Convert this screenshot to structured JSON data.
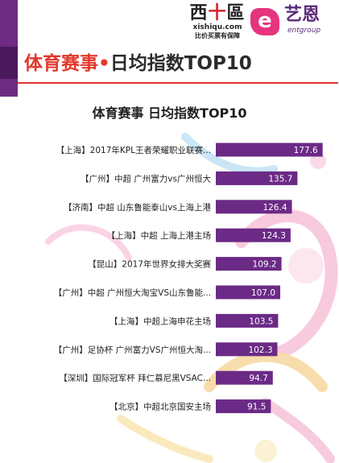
{
  "header": {
    "logo_xishiqu": {
      "brand_left": "西",
      "brand_plus": "十",
      "brand_right": "區",
      "domain": "xishiqu.com",
      "slogan": "比价买票有保障"
    },
    "logo_entgroup": {
      "badge": "e",
      "cn": "艺恩",
      "en": "entgroup"
    },
    "title_part1": "体育赛事",
    "title_dot": "•",
    "title_part2": "日均指数TOP10"
  },
  "colors": {
    "bar": "#6b2a86",
    "accent": "#e2382d",
    "stripe": "#6e2b82"
  },
  "chart_data": {
    "type": "bar",
    "orientation": "horizontal",
    "title": "体育赛事 日均指数TOP10",
    "categories": [
      "【上海】2017年KPL王者荣耀职业联赛...",
      "【广州】中超 广州富力vs广州恒大",
      "【济南】中超 山东鲁能泰山vs上海上港",
      "【上海】中超 上海上港主场",
      "【昆山】2017年世界女排大奖赛",
      "【广州】中超 广州恒大淘宝VS山东鲁能...",
      "【上海】中超上海申花主场",
      "【广州】足协杯 广州富力VS广州恒大淘...",
      "【深圳】国际冠军杯 拜仁慕尼黑VSAC...",
      "【北京】中超北京国安主场"
    ],
    "values": [
      177.6,
      135.7,
      126.4,
      124.3,
      109.2,
      107.0,
      103.5,
      102.3,
      94.7,
      91.5
    ],
    "value_labels": [
      "177.6",
      "135.7",
      "126.4",
      "124.3",
      "109.2",
      "107.0",
      "103.5",
      "102.3",
      "94.7",
      "91.5"
    ],
    "xlim": [
      0,
      190
    ],
    "grid": false,
    "legend": "none"
  }
}
